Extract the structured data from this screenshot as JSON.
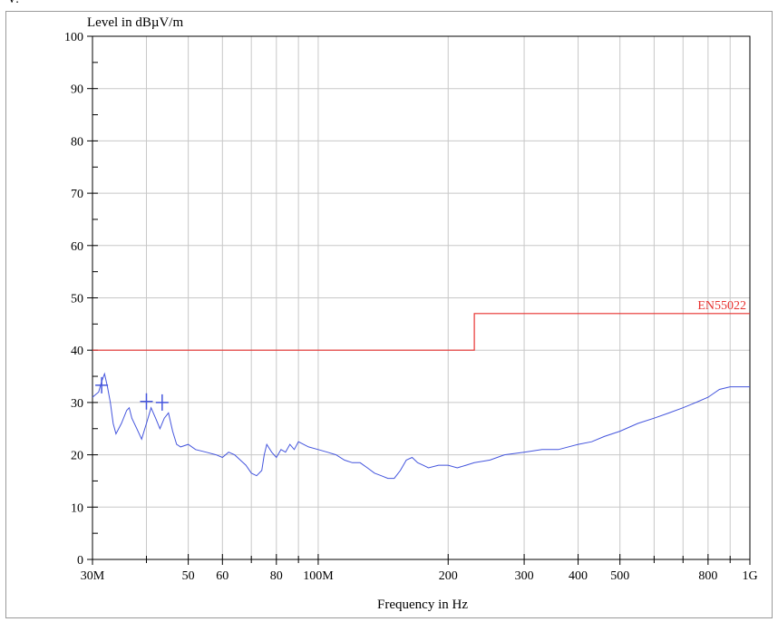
{
  "header_fragment": "V:",
  "chart_data": {
    "type": "line",
    "title": "",
    "ylabel": "Level in dBµV/m",
    "xlabel": "Frequency in Hz",
    "xscale": "log",
    "xlim": [
      30000000,
      1000000000
    ],
    "ylim": [
      0,
      100
    ],
    "grid": true,
    "y_ticks": [
      0,
      10,
      20,
      30,
      40,
      50,
      60,
      70,
      80,
      90,
      100
    ],
    "x_ticks": [
      {
        "value": 30000000,
        "label": "30M"
      },
      {
        "value": 50000000,
        "label": "50"
      },
      {
        "value": 60000000,
        "label": "60"
      },
      {
        "value": 80000000,
        "label": "80"
      },
      {
        "value": 100000000,
        "label": "100M"
      },
      {
        "value": 200000000,
        "label": "200"
      },
      {
        "value": 300000000,
        "label": "300"
      },
      {
        "value": 400000000,
        "label": "400"
      },
      {
        "value": 500000000,
        "label": "500"
      },
      {
        "value": 800000000,
        "label": "800"
      },
      {
        "value": 1000000000,
        "label": "1G"
      }
    ],
    "limit_line": {
      "name": "EN55022",
      "color": "#e8312f",
      "points": [
        [
          30000000,
          40
        ],
        [
          230000000,
          40
        ],
        [
          230000000,
          47
        ],
        [
          1000000000,
          47
        ]
      ]
    },
    "series": [
      {
        "color": "#4455dd",
        "points": [
          [
            30000000,
            31
          ],
          [
            30500000,
            31.5
          ],
          [
            31000000,
            32
          ],
          [
            31500000,
            34
          ],
          [
            32000000,
            35.5
          ],
          [
            32500000,
            33
          ],
          [
            33000000,
            30
          ],
          [
            33500000,
            26
          ],
          [
            34000000,
            24
          ],
          [
            35000000,
            26
          ],
          [
            36000000,
            28.5
          ],
          [
            36500000,
            29
          ],
          [
            37000000,
            27
          ],
          [
            38000000,
            25
          ],
          [
            39000000,
            23
          ],
          [
            40000000,
            26
          ],
          [
            41000000,
            29
          ],
          [
            42000000,
            27
          ],
          [
            43000000,
            25
          ],
          [
            44000000,
            27
          ],
          [
            45000000,
            28
          ],
          [
            46000000,
            24.5
          ],
          [
            47000000,
            22
          ],
          [
            48000000,
            21.5
          ],
          [
            50000000,
            22
          ],
          [
            52000000,
            21
          ],
          [
            55000000,
            20.5
          ],
          [
            58000000,
            20
          ],
          [
            60000000,
            19.5
          ],
          [
            62000000,
            20.5
          ],
          [
            64000000,
            20
          ],
          [
            66000000,
            19
          ],
          [
            68000000,
            18
          ],
          [
            70000000,
            16.5
          ],
          [
            72000000,
            16
          ],
          [
            74000000,
            17
          ],
          [
            75000000,
            20
          ],
          [
            76000000,
            22
          ],
          [
            78000000,
            20.5
          ],
          [
            80000000,
            19.5
          ],
          [
            82000000,
            21
          ],
          [
            84000000,
            20.5
          ],
          [
            86000000,
            22
          ],
          [
            88000000,
            21
          ],
          [
            90000000,
            22.5
          ],
          [
            95000000,
            21.5
          ],
          [
            100000000,
            21
          ],
          [
            105000000,
            20.5
          ],
          [
            110000000,
            20
          ],
          [
            115000000,
            19
          ],
          [
            120000000,
            18.5
          ],
          [
            125000000,
            18.5
          ],
          [
            130000000,
            17.5
          ],
          [
            135000000,
            16.5
          ],
          [
            140000000,
            16
          ],
          [
            145000000,
            15.5
          ],
          [
            150000000,
            15.5
          ],
          [
            155000000,
            17
          ],
          [
            160000000,
            19
          ],
          [
            165000000,
            19.5
          ],
          [
            170000000,
            18.5
          ],
          [
            175000000,
            18
          ],
          [
            180000000,
            17.5
          ],
          [
            190000000,
            18
          ],
          [
            200000000,
            18
          ],
          [
            210000000,
            17.5
          ],
          [
            220000000,
            18
          ],
          [
            230000000,
            18.5
          ],
          [
            250000000,
            19
          ],
          [
            270000000,
            20
          ],
          [
            300000000,
            20.5
          ],
          [
            330000000,
            21
          ],
          [
            360000000,
            21
          ],
          [
            400000000,
            22
          ],
          [
            430000000,
            22.5
          ],
          [
            460000000,
            23.5
          ],
          [
            500000000,
            24.5
          ],
          [
            550000000,
            26
          ],
          [
            600000000,
            27
          ],
          [
            650000000,
            28
          ],
          [
            700000000,
            29
          ],
          [
            750000000,
            30
          ],
          [
            800000000,
            31
          ],
          [
            850000000,
            32.5
          ],
          [
            900000000,
            33
          ],
          [
            950000000,
            33
          ],
          [
            1000000000,
            33
          ]
        ]
      }
    ],
    "markers": [
      {
        "x": 31500000,
        "y": 33.3
      },
      {
        "x": 40000000,
        "y": 30.2
      },
      {
        "x": 43500000,
        "y": 30.0
      }
    ]
  }
}
